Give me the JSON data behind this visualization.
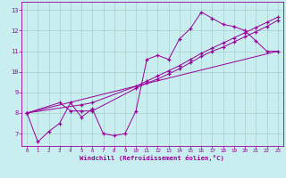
{
  "background_color": "#c8eef0",
  "line_color": "#990099",
  "grid_color": "#aacccc",
  "xlabel": "Windchill (Refroidissement éolien,°C)",
  "tick_color": "#990099",
  "xlim": [
    -0.5,
    23.5
  ],
  "ylim": [
    6.4,
    13.4
  ],
  "xticks": [
    0,
    1,
    2,
    3,
    4,
    5,
    6,
    7,
    8,
    9,
    10,
    11,
    12,
    13,
    14,
    15,
    16,
    17,
    18,
    19,
    20,
    21,
    22,
    23
  ],
  "yticks": [
    7,
    8,
    9,
    10,
    11,
    12,
    13
  ],
  "series1_x": [
    0,
    1,
    2,
    3,
    4,
    5,
    6,
    7,
    8,
    9,
    10,
    11,
    12,
    13,
    14,
    15,
    16,
    17,
    18,
    19,
    20,
    21,
    22,
    23
  ],
  "series1_y": [
    8.0,
    6.6,
    7.1,
    7.5,
    8.5,
    7.8,
    8.2,
    7.0,
    6.9,
    7.0,
    8.1,
    10.6,
    10.8,
    10.6,
    11.6,
    12.1,
    12.9,
    12.6,
    12.3,
    12.2,
    12.0,
    11.5,
    11.0,
    11.0
  ],
  "series2_x": [
    0,
    3,
    4,
    5,
    6,
    10,
    11,
    12,
    13,
    14,
    15,
    16,
    17,
    18,
    19,
    20,
    21,
    22,
    23
  ],
  "series2_y": [
    8.0,
    8.5,
    8.1,
    8.1,
    8.1,
    9.2,
    9.45,
    9.65,
    9.9,
    10.15,
    10.45,
    10.75,
    11.0,
    11.2,
    11.45,
    11.7,
    11.95,
    12.2,
    12.5
  ],
  "series3_x": [
    0,
    23
  ],
  "series3_y": [
    8.0,
    11.0
  ],
  "series4_x": [
    0,
    5,
    6,
    10,
    11,
    12,
    13,
    14,
    15,
    16,
    17,
    18,
    19,
    20,
    21,
    22,
    23
  ],
  "series4_y": [
    8.0,
    8.4,
    8.5,
    9.3,
    9.55,
    9.8,
    10.05,
    10.3,
    10.6,
    10.9,
    11.15,
    11.4,
    11.65,
    11.9,
    12.15,
    12.4,
    12.65
  ]
}
